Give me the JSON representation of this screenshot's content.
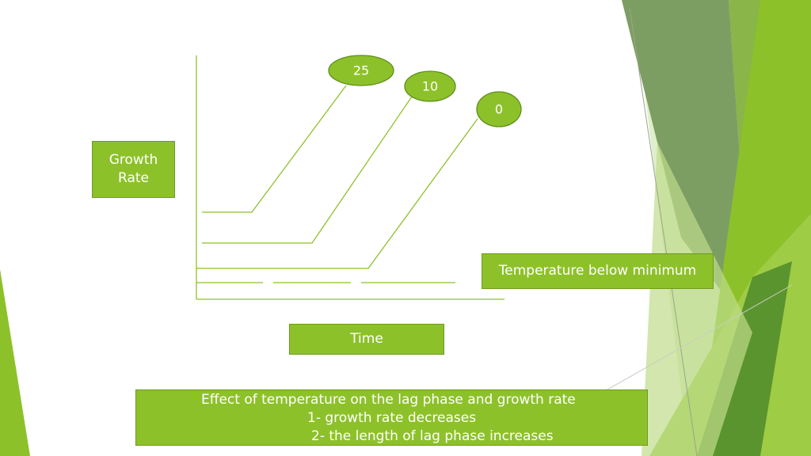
{
  "diagram": {
    "y_axis_label": [
      "Growth",
      "Rate"
    ],
    "x_axis_label": "Time",
    "temperature_label": "Temperature below minimum",
    "curves": [
      {
        "label": "25"
      },
      {
        "label": "10"
      },
      {
        "label": "0"
      }
    ]
  },
  "caption": {
    "line1": "Effect of temperature on the lag phase and growth rate",
    "line2": "1- growth rate decreases",
    "line3": "2- the length of lag phase increases"
  },
  "colors": {
    "accent_green": "#8dc12a",
    "line_green": "#8dc12a",
    "ellipse_border": "#5e8f1c",
    "dark_green": "#4e8a2a",
    "light_green": "#b7d97a"
  }
}
